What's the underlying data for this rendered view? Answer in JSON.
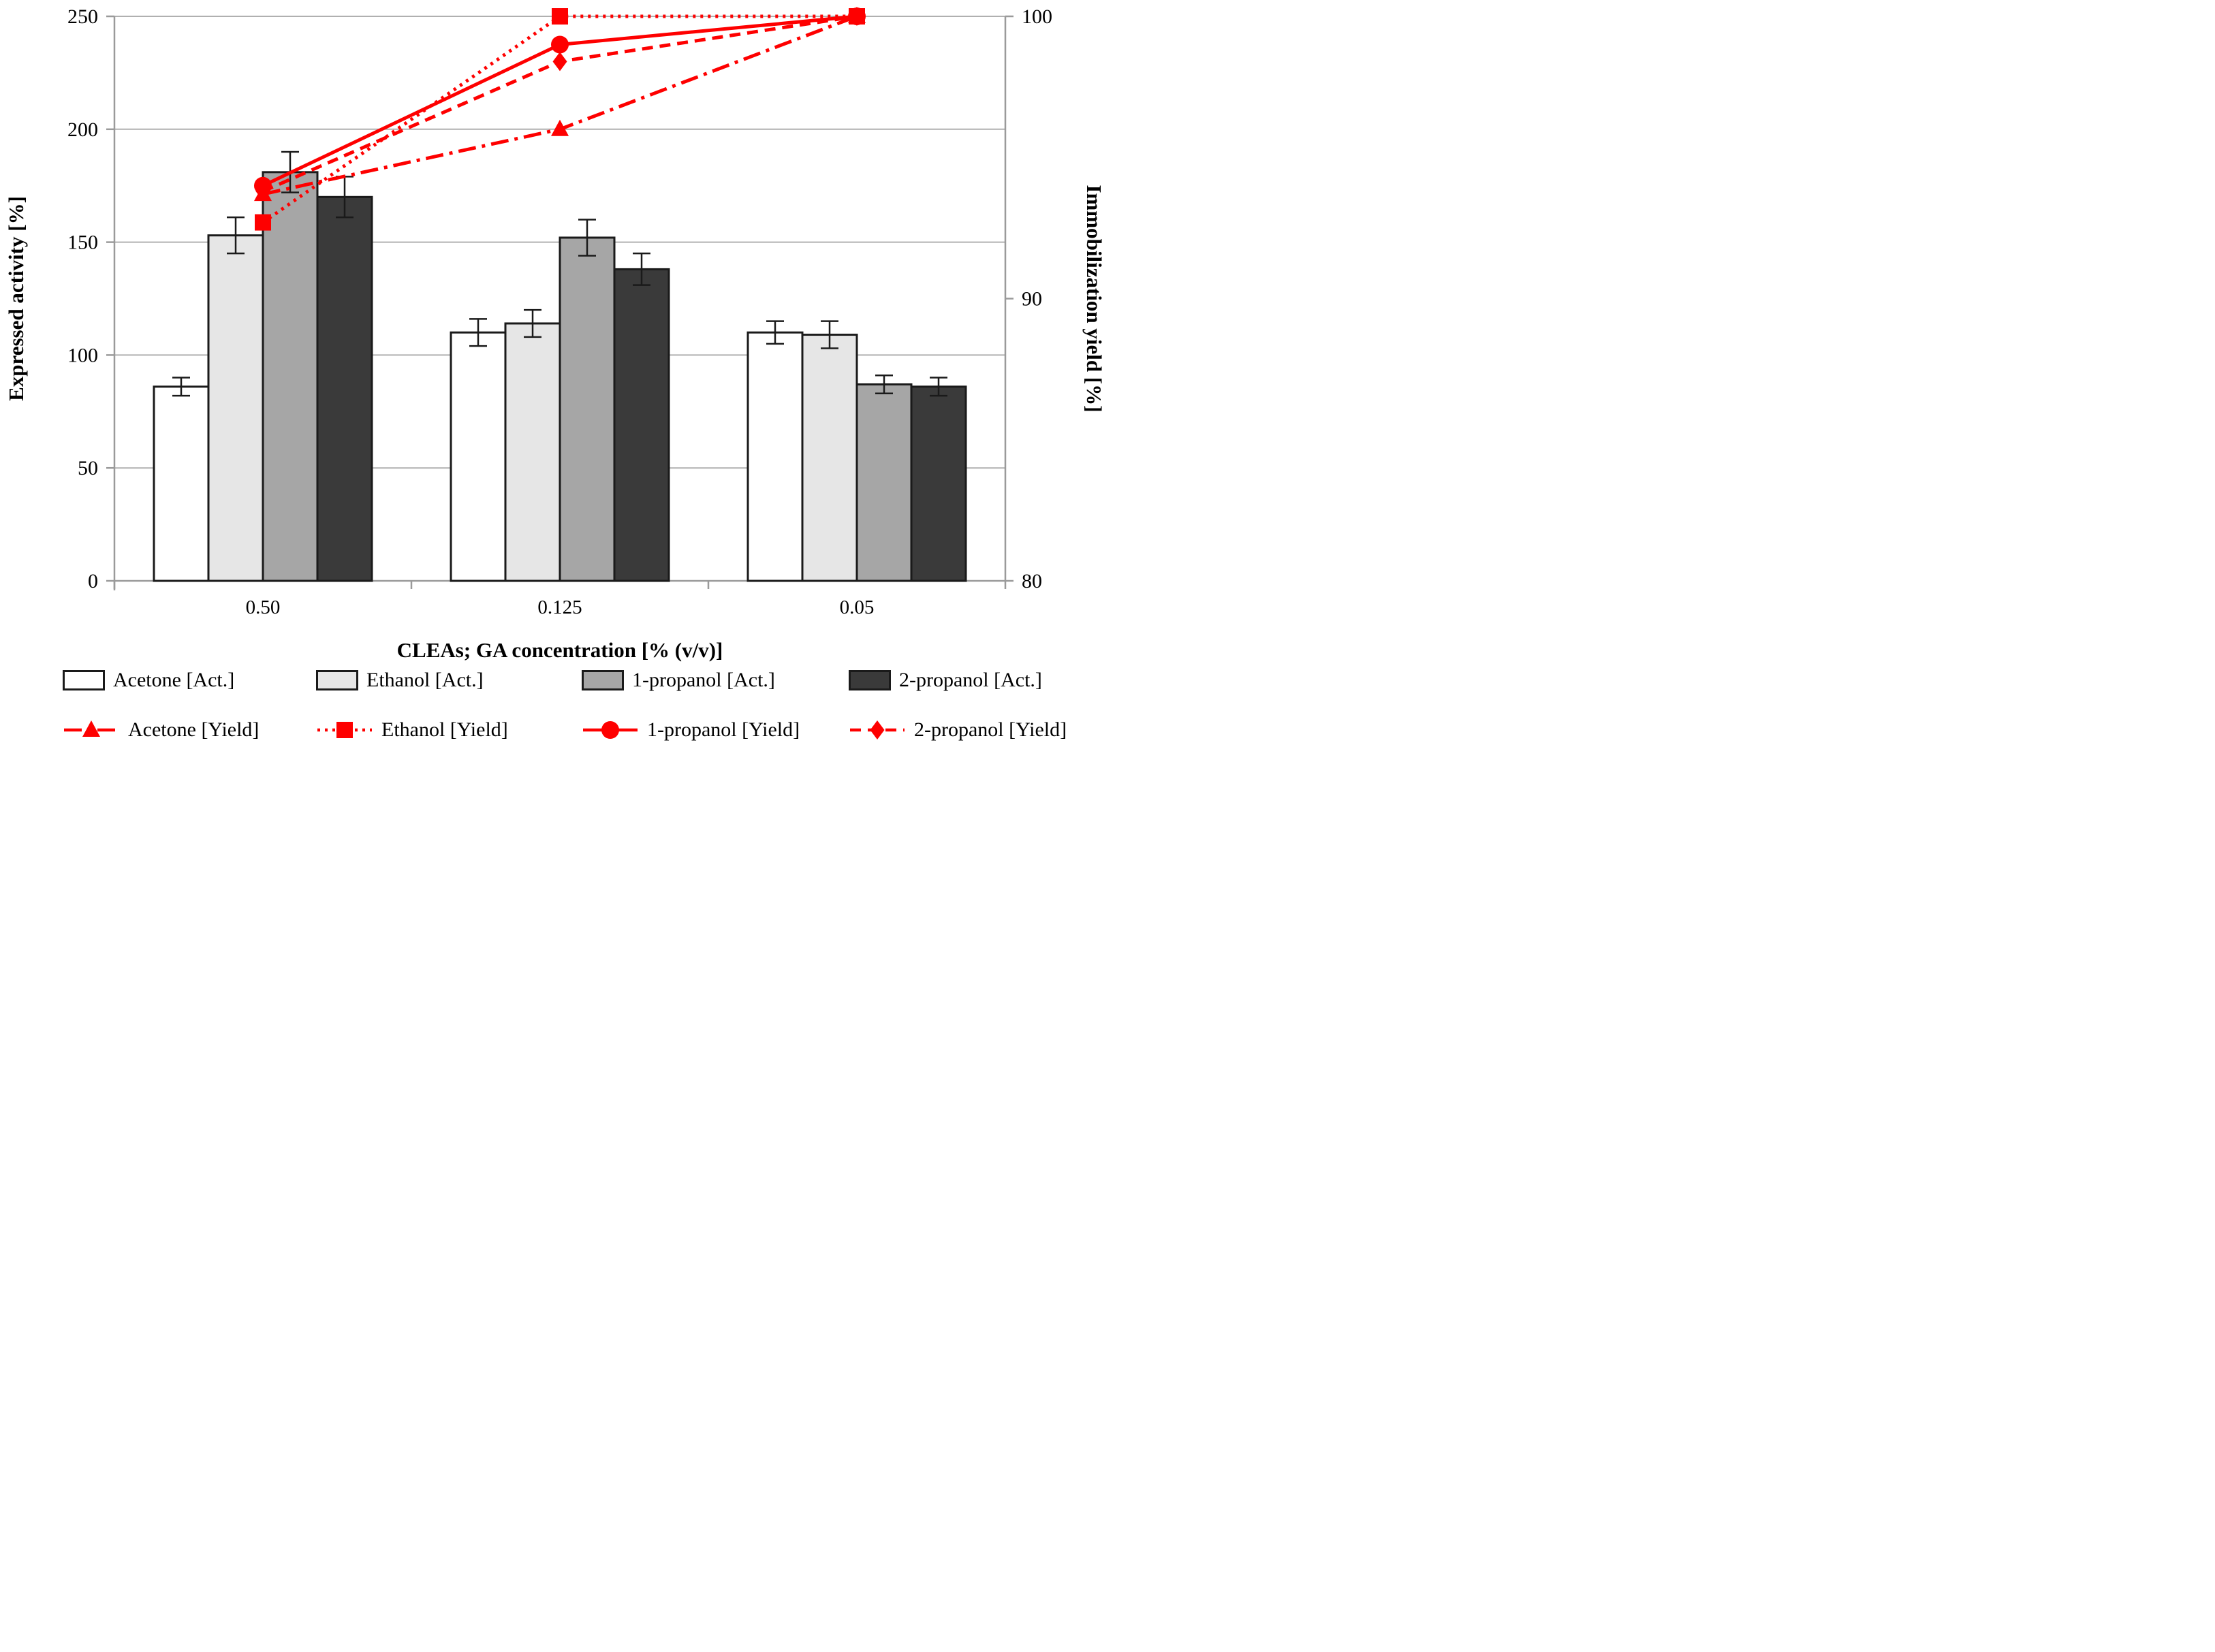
{
  "figure": {
    "x_axis_title": "CLEAs; GA concentration [% (v/v)]",
    "left_axis_title": "Expressed activity [%]",
    "right_axis_title": "Immobilization yield [%]"
  },
  "style": {
    "grid_color": "#b0b0b0",
    "axis_color": "#9a9a9a",
    "bar_border_color": "#1a1a1a",
    "error_bar_color": "#1a1a1a",
    "line_red": "#fe0000",
    "text_color": "#000000"
  },
  "chart_data": {
    "type": "bar+line",
    "categories": [
      "0.50",
      "0.125",
      "0.05"
    ],
    "x_axis": {
      "title": "CLEAs; GA concentration [% (v/v)]"
    },
    "left_axis": {
      "title": "Expressed activity [%]",
      "min": 0,
      "max": 250,
      "ticks": [
        0,
        50,
        100,
        150,
        200,
        250
      ]
    },
    "right_axis": {
      "title": "Immobilization yield [%]",
      "min": 80,
      "max": 100,
      "ticks": [
        80,
        90,
        100
      ]
    },
    "grid": "horizontal gridlines at left-axis ticks",
    "legend_position": "bottom two rows",
    "bar_series": [
      {
        "name": "Acetone [Act.]",
        "color": "#ffffff",
        "values": [
          86,
          110,
          110
        ],
        "errors": [
          4,
          6,
          5
        ]
      },
      {
        "name": "Ethanol [Act.]",
        "color": "#e6e6e6",
        "values": [
          153,
          114,
          109
        ],
        "errors": [
          8,
          6,
          6
        ]
      },
      {
        "name": "1-propanol [Act.]",
        "color": "#a6a6a6",
        "values": [
          181,
          152,
          87
        ],
        "errors": [
          9,
          8,
          4
        ]
      },
      {
        "name": "2-propanol [Act.]",
        "color": "#3a3a3a",
        "values": [
          170,
          138,
          86
        ],
        "errors": [
          9,
          7,
          4
        ]
      }
    ],
    "line_series": [
      {
        "name": "Acetone [Yield]",
        "color": "#fe0000",
        "marker": "triangle",
        "dash": "dash-dot",
        "values": [
          93.7,
          96.0,
          100
        ]
      },
      {
        "name": "Ethanol [Yield]",
        "color": "#fe0000",
        "marker": "square",
        "dash": "dotted",
        "values": [
          92.7,
          100,
          100
        ]
      },
      {
        "name": "1-propanol [Yield]",
        "color": "#fe0000",
        "marker": "circle",
        "dash": "solid",
        "values": [
          94.0,
          99.0,
          100
        ]
      },
      {
        "name": "2-propanol [Yield]",
        "color": "#fe0000",
        "marker": "diamond",
        "dash": "dashed",
        "values": [
          93.8,
          98.4,
          100
        ]
      }
    ]
  }
}
